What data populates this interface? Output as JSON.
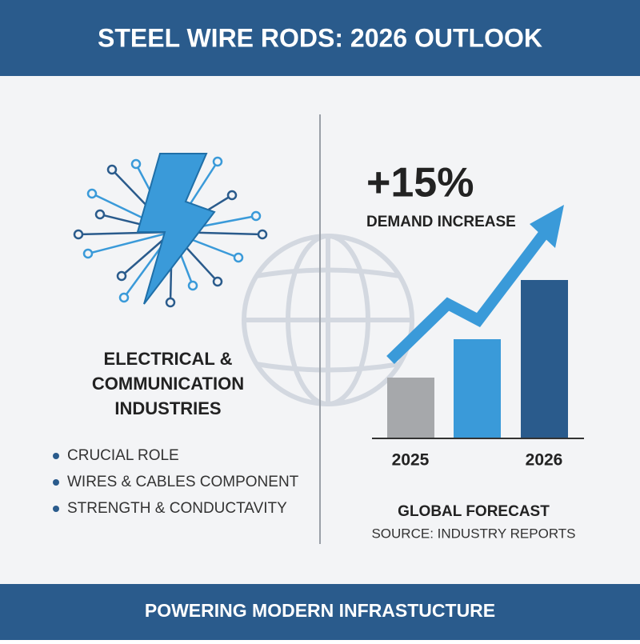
{
  "header": {
    "title": "STEEL WIRE RODS: 2026 OUTLOOK"
  },
  "left": {
    "heading": [
      "ELECTRICAL &",
      "COMMUNICATION",
      "INDUSTRIES"
    ],
    "bullets": [
      "CRUCIAL ROLE",
      "WIRES & CABLES COMPONENT",
      "STRENGTH & CONDUCTAVITY"
    ]
  },
  "right": {
    "stat": "+15%",
    "stat_label": "DEMAND INCREASE",
    "bar_labels": [
      "2025",
      "2026"
    ],
    "caption": "GLOBAL FORECAST",
    "source": "SOURCE: INDUSTRY REPORTS"
  },
  "footer": {
    "text": "POWERING MODERN INFRASTUCTURE"
  }
}
